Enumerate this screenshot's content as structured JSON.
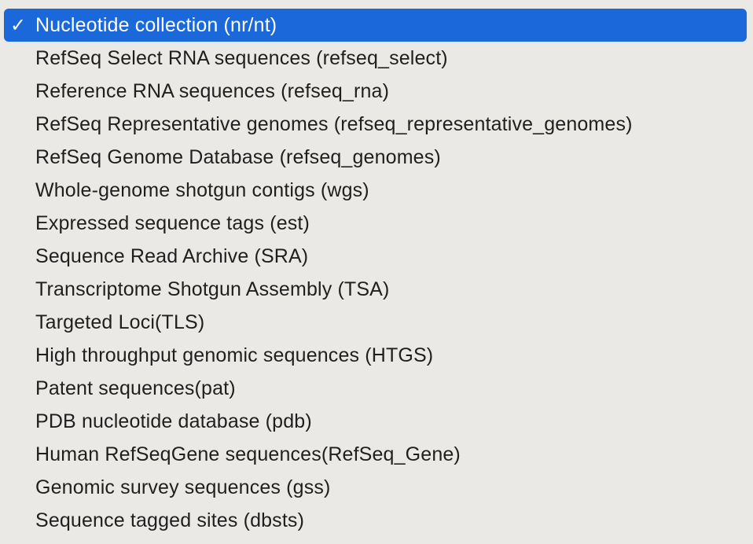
{
  "menu": {
    "check_glyph": "✓",
    "selected_index": 0,
    "items": [
      {
        "label": "Nucleotide collection (nr/nt)"
      },
      {
        "label": "RefSeq Select RNA sequences (refseq_select)"
      },
      {
        "label": "Reference RNA sequences (refseq_rna)"
      },
      {
        "label": "RefSeq Representative genomes (refseq_representative_genomes)"
      },
      {
        "label": "RefSeq Genome Database (refseq_genomes)"
      },
      {
        "label": "Whole-genome shotgun contigs (wgs)"
      },
      {
        "label": "Expressed sequence tags (est)"
      },
      {
        "label": "Sequence Read Archive (SRA)"
      },
      {
        "label": "Transcriptome Shotgun Assembly (TSA)"
      },
      {
        "label": "Targeted Loci(TLS)"
      },
      {
        "label": "High throughput genomic sequences (HTGS)"
      },
      {
        "label": "Patent sequences(pat)"
      },
      {
        "label": "PDB nucleotide database (pdb)"
      },
      {
        "label": "Human RefSeqGene sequences(RefSeq_Gene)"
      },
      {
        "label": "Genomic survey sequences (gss)"
      },
      {
        "label": "Sequence tagged sites (dbsts)"
      }
    ]
  },
  "colors": {
    "menu_background": "#ebe9e6",
    "selection_background": "#1a68da",
    "selection_text": "#ffffff",
    "item_text": "#1f1f1f"
  }
}
